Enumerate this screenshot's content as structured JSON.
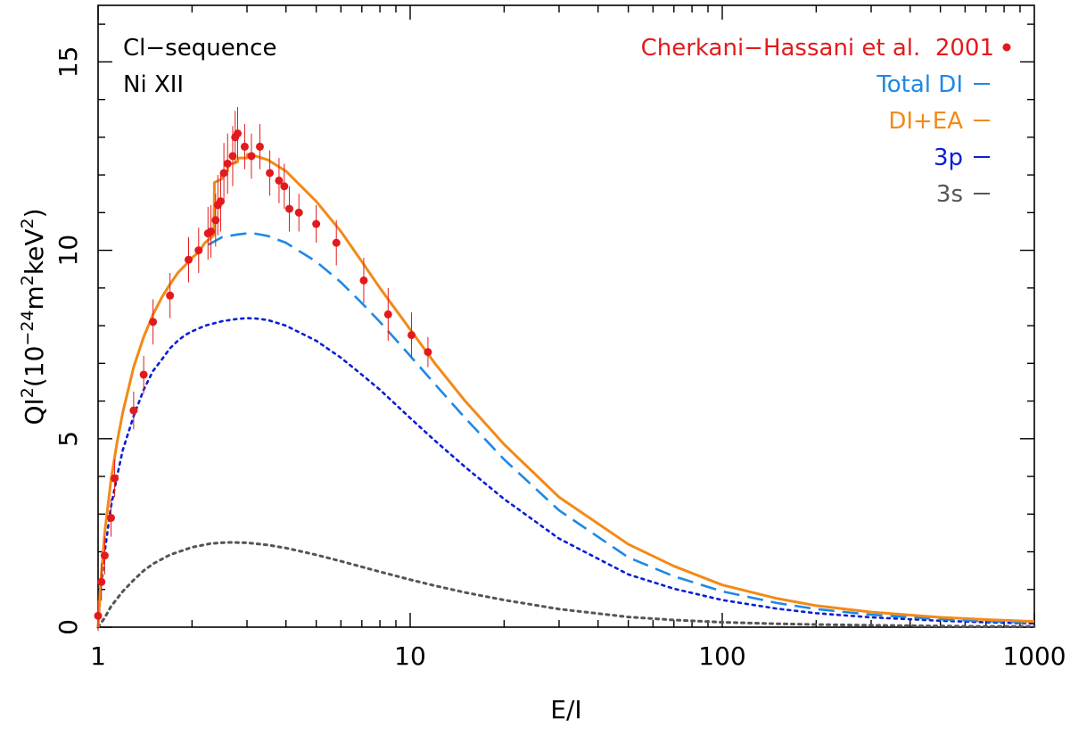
{
  "chart_data": {
    "type": "line",
    "title": "",
    "xlabel": "E/I",
    "ylabel_parts": {
      "a": "QI",
      "b": "2",
      "c": "(10",
      "d": "−24",
      "e": "m",
      "f": "2",
      "g": "keV",
      "h": "2",
      "i": ")"
    },
    "x_scale": "log",
    "xlim": [
      1,
      1000
    ],
    "ylim": [
      0,
      16.5
    ],
    "x_ticks": [
      1,
      10,
      100,
      1000
    ],
    "x_tick_labels": [
      "1",
      "10",
      "100",
      "1000"
    ],
    "y_ticks": [
      0,
      5,
      10,
      15
    ],
    "y_tick_labels": [
      "0",
      "5",
      "10",
      "15"
    ],
    "annotations": [
      "Cl−sequence",
      "Ni XII"
    ],
    "legend": [
      {
        "label": "Cherkani−Hassani et al.  2001",
        "color": "#e31a1c",
        "marker": "dot"
      },
      {
        "label": "Total DI",
        "color": "#1f88e5",
        "marker": "dash"
      },
      {
        "label": "DI+EA",
        "color": "#f28a17",
        "marker": "dash"
      },
      {
        "label": "3p",
        "color": "#0a1ed8",
        "marker": "dash"
      },
      {
        "label": "3s",
        "color": "#555555",
        "marker": "dash"
      }
    ],
    "series": [
      {
        "name": "DI+EA",
        "color": "#f28a17",
        "style": "solid",
        "x": [
          1.0,
          1.02,
          1.05,
          1.1,
          1.15,
          1.2,
          1.3,
          1.4,
          1.5,
          1.6,
          1.7,
          1.8,
          1.9,
          2.0,
          2.1,
          2.2,
          2.35,
          2.36,
          2.5,
          2.51,
          2.6,
          2.61,
          2.7,
          2.8,
          2.81,
          3.0,
          3.01,
          3.2,
          3.5,
          4.0,
          5.0,
          6.0,
          7.0,
          8.0,
          10.0,
          12.0,
          15.0,
          20.0,
          30.0,
          50.0,
          70.0,
          100.0,
          150.0,
          200.0,
          300.0,
          500.0,
          700.0,
          1000.0
        ],
        "y": [
          0.0,
          1.2,
          2.5,
          3.9,
          4.9,
          5.7,
          6.9,
          7.7,
          8.3,
          8.75,
          9.1,
          9.4,
          9.6,
          9.8,
          9.95,
          10.2,
          10.4,
          11.8,
          11.9,
          12.1,
          12.1,
          12.3,
          12.3,
          12.35,
          12.45,
          12.45,
          12.55,
          12.5,
          12.4,
          12.1,
          11.3,
          10.5,
          9.7,
          9.0,
          7.9,
          7.0,
          6.0,
          4.85,
          3.45,
          2.2,
          1.62,
          1.12,
          0.76,
          0.57,
          0.4,
          0.26,
          0.2,
          0.15
        ]
      },
      {
        "name": "Total DI",
        "color": "#1f88e5",
        "style": "dashed",
        "x": [
          1.0,
          1.02,
          1.05,
          1.1,
          1.15,
          1.2,
          1.3,
          1.4,
          1.5,
          1.6,
          1.7,
          1.8,
          1.9,
          2.0,
          2.2,
          2.5,
          2.8,
          3.0,
          3.2,
          3.5,
          4.0,
          5.0,
          6.0,
          7.0,
          8.0,
          10.0,
          12.0,
          15.0,
          20.0,
          30.0,
          50.0,
          70.0,
          100.0,
          150.0,
          200.0,
          300.0,
          500.0,
          700.0,
          1000.0
        ],
        "y": [
          0.0,
          1.2,
          2.5,
          3.9,
          4.9,
          5.7,
          6.9,
          7.7,
          8.3,
          8.75,
          9.1,
          9.4,
          9.6,
          9.8,
          10.1,
          10.35,
          10.42,
          10.45,
          10.44,
          10.38,
          10.2,
          9.7,
          9.15,
          8.6,
          8.1,
          7.2,
          6.45,
          5.55,
          4.45,
          3.1,
          1.85,
          1.35,
          0.95,
          0.64,
          0.48,
          0.33,
          0.21,
          0.16,
          0.12
        ]
      },
      {
        "name": "3p",
        "color": "#0a1ed8",
        "style": "dotted",
        "x": [
          1.0,
          1.02,
          1.05,
          1.1,
          1.15,
          1.2,
          1.3,
          1.4,
          1.5,
          1.6,
          1.7,
          1.8,
          1.9,
          2.0,
          2.2,
          2.5,
          2.8,
          3.0,
          3.2,
          3.5,
          4.0,
          5.0,
          6.0,
          7.0,
          8.0,
          10.0,
          12.0,
          15.0,
          20.0,
          30.0,
          50.0,
          70.0,
          100.0,
          150.0,
          200.0,
          300.0,
          500.0,
          700.0,
          1000.0
        ],
        "y": [
          0.0,
          1.0,
          2.0,
          3.2,
          4.0,
          4.7,
          5.6,
          6.3,
          6.8,
          7.1,
          7.4,
          7.6,
          7.75,
          7.85,
          8.0,
          8.12,
          8.18,
          8.2,
          8.19,
          8.15,
          8.0,
          7.6,
          7.15,
          6.7,
          6.3,
          5.55,
          4.95,
          4.25,
          3.4,
          2.35,
          1.4,
          1.02,
          0.72,
          0.49,
          0.37,
          0.26,
          0.17,
          0.13,
          0.1
        ]
      },
      {
        "name": "3s",
        "color": "#555555",
        "style": "dotted",
        "x": [
          1.0,
          1.05,
          1.1,
          1.2,
          1.3,
          1.4,
          1.5,
          1.7,
          2.0,
          2.3,
          2.6,
          3.0,
          3.5,
          4.0,
          5.0,
          6.0,
          7.0,
          8.0,
          10.0,
          12.0,
          15.0,
          20.0,
          30.0,
          50.0,
          70.0,
          100.0,
          150.0,
          200.0,
          300.0,
          500.0,
          700.0,
          1000.0
        ],
        "y": [
          0.0,
          0.25,
          0.55,
          0.95,
          1.25,
          1.5,
          1.68,
          1.92,
          2.12,
          2.22,
          2.25,
          2.24,
          2.18,
          2.1,
          1.92,
          1.75,
          1.6,
          1.47,
          1.26,
          1.1,
          0.92,
          0.72,
          0.48,
          0.27,
          0.19,
          0.13,
          0.09,
          0.07,
          0.05,
          0.03,
          0.02,
          0.02
        ]
      }
    ],
    "points": {
      "name": "Cherkani−Hassani et al. 2001",
      "color": "#e31a1c",
      "x": [
        1.0,
        1.025,
        1.05,
        1.1,
        1.13,
        1.3,
        1.4,
        1.5,
        1.7,
        1.95,
        2.1,
        2.25,
        2.3,
        2.38,
        2.42,
        2.47,
        2.53,
        2.6,
        2.7,
        2.75,
        2.8,
        2.95,
        3.1,
        3.3,
        3.55,
        3.8,
        3.95,
        4.1,
        4.4,
        5.0,
        5.8,
        7.1,
        8.5,
        10.1,
        11.4
      ],
      "y": [
        0.3,
        1.2,
        1.9,
        2.9,
        3.95,
        5.75,
        6.7,
        8.1,
        8.8,
        9.75,
        10.0,
        10.45,
        10.5,
        10.8,
        11.2,
        11.3,
        12.05,
        12.3,
        12.5,
        13.0,
        13.1,
        12.75,
        12.5,
        12.75,
        12.05,
        11.85,
        11.7,
        11.1,
        11.0,
        10.7,
        10.2,
        9.2,
        8.3,
        7.75,
        7.3
      ],
      "err": [
        0.4,
        0.5,
        0.5,
        0.5,
        0.5,
        0.5,
        0.5,
        0.6,
        0.6,
        0.6,
        0.6,
        0.7,
        0.7,
        0.7,
        0.8,
        0.8,
        0.8,
        0.8,
        0.8,
        0.7,
        0.7,
        0.6,
        0.6,
        0.6,
        0.6,
        0.6,
        0.6,
        0.6,
        0.5,
        0.5,
        0.6,
        0.6,
        0.7,
        0.6,
        0.4
      ]
    }
  }
}
